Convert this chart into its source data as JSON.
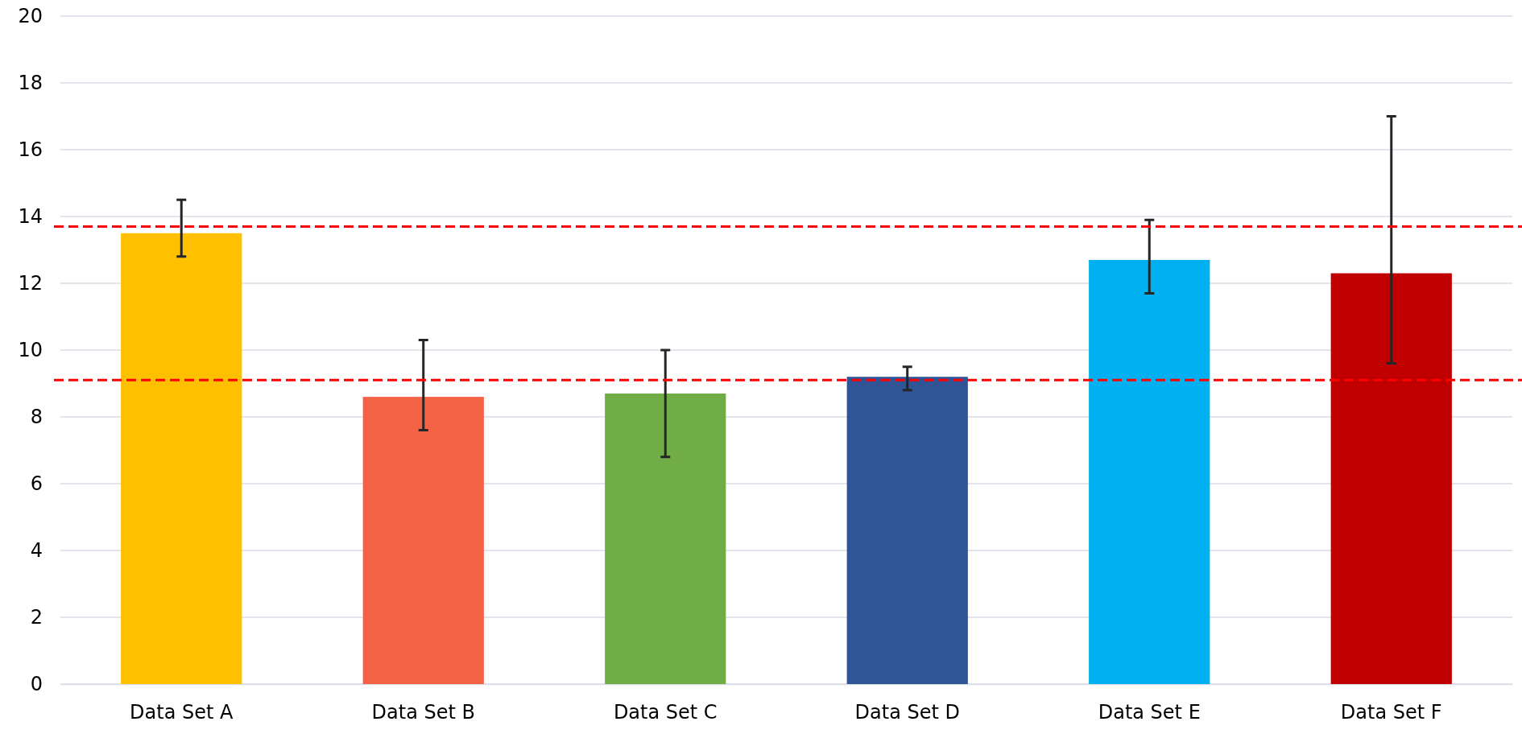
{
  "chart_data": {
    "type": "bar",
    "categories": [
      "Data Set A",
      "Data Set B",
      "Data Set C",
      "Data Set D",
      "Data Set E",
      "Data Set F"
    ],
    "values": [
      13.5,
      8.6,
      8.7,
      9.2,
      12.7,
      12.3
    ],
    "colors": [
      "#ffc000",
      "#f46245",
      "#70ad47",
      "#2f5597",
      "#00b0f0",
      "#c00000"
    ],
    "errors": [
      [
        12.8,
        14.5
      ],
      [
        7.6,
        10.3
      ],
      [
        6.8,
        10.0
      ],
      [
        8.8,
        9.5
      ],
      [
        11.7,
        13.9
      ],
      [
        9.6,
        17.0
      ]
    ],
    "ylim": [
      0,
      20
    ],
    "yticks": [
      0,
      2,
      4,
      6,
      8,
      10,
      12,
      14,
      16,
      18,
      20
    ],
    "grid": "y",
    "ref_lines": [
      {
        "axis": "y",
        "value": 13.7,
        "color": "#ff0000",
        "line_style": "dashed"
      },
      {
        "axis": "y",
        "value": 9.1,
        "color": "#ff0000",
        "line_style": "dashed"
      }
    ]
  }
}
